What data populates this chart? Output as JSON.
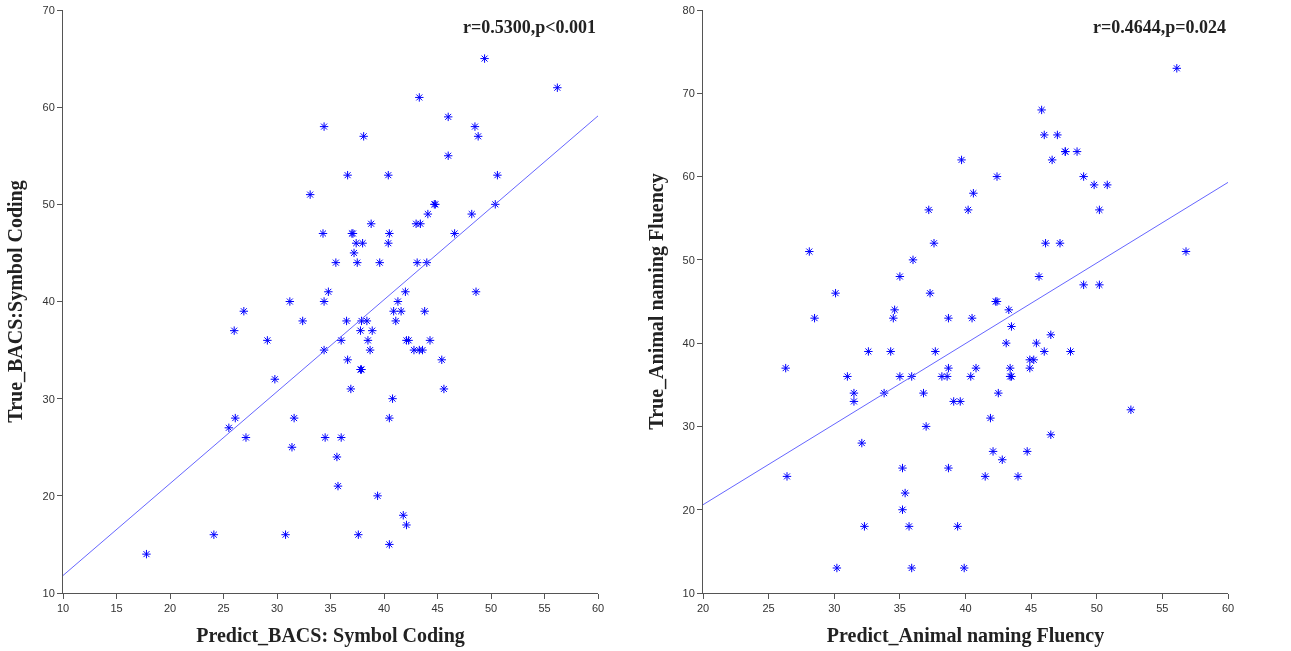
{
  "chart_data": [
    {
      "type": "scatter",
      "xlabel": "Predict_BACS: Symbol Coding",
      "ylabel": "True_BACS:Symbol Coding",
      "annotations": [
        "r=0.5300,p<0.001"
      ],
      "xlim": [
        10,
        60
      ],
      "xticks": [
        10,
        15,
        20,
        25,
        30,
        35,
        40,
        45,
        50,
        55,
        60
      ],
      "ylim": [
        10,
        70
      ],
      "yticks": [
        10,
        20,
        30,
        40,
        50,
        60,
        70
      ],
      "grid": false,
      "marker": "cross",
      "series": [
        {
          "color": "#0000ff",
          "x": [
            17.8,
            24.1,
            25.5,
            26.1,
            26.0,
            26.9,
            27.1,
            29.1,
            29.8,
            30.8,
            31.2,
            31.4,
            31.6,
            32.4,
            33.1,
            34.4,
            34.3,
            34.4,
            34.4,
            34.5,
            34.8,
            35.5,
            35.6,
            35.7,
            36.0,
            36.0,
            36.5,
            36.6,
            36.6,
            36.9,
            37.0,
            37.1,
            37.2,
            37.4,
            37.5,
            37.6,
            37.8,
            37.8,
            37.9,
            37.9,
            38.0,
            38.1,
            38.5,
            38.7,
            38.8,
            38.9,
            38.4,
            39.4,
            39.6,
            40.4,
            40.4,
            40.5,
            40.5,
            40.5,
            40.8,
            40.9,
            41.1,
            41.3,
            41.6,
            41.8,
            42.0,
            42.1,
            42.1,
            42.3,
            43.0,
            42.8,
            43.1,
            43.3,
            43.3,
            43.4,
            43.6,
            43.8,
            44.0,
            44.1,
            44.3,
            44.7,
            44.8,
            45.4,
            45.6,
            46.0,
            46.0,
            46.6,
            48.2,
            48.5,
            48.6,
            48.8,
            49.4,
            50.4,
            50.6,
            56.2
          ],
          "values": [
            14,
            16,
            27,
            28,
            37,
            39,
            26,
            36,
            32,
            16,
            40,
            25,
            28,
            38,
            51,
            58,
            47,
            40,
            35,
            26,
            41,
            44,
            24,
            21,
            26,
            36,
            38,
            34,
            53,
            31,
            47,
            47,
            45,
            46,
            44,
            16,
            37,
            33,
            33,
            38,
            46,
            57,
            36,
            35,
            48,
            37,
            38,
            20,
            44,
            53,
            46,
            47,
            28,
            15,
            30,
            39,
            38,
            40,
            39,
            18,
            41,
            17,
            36,
            36,
            48,
            35,
            44,
            61,
            35,
            48,
            35,
            39,
            44,
            49,
            36,
            50,
            50,
            34,
            31,
            59,
            55,
            47,
            49,
            58,
            41,
            57,
            65,
            50,
            53,
            62
          ]
        },
        {
          "type": "line",
          "color": "#6666ff",
          "line_style": "solid",
          "marker": "none",
          "x": [
            10,
            60
          ],
          "values": [
            11.8,
            59.1
          ]
        }
      ]
    },
    {
      "type": "scatter",
      "xlabel": "Predict_Animal naming Fluency",
      "ylabel": "True_Animal naming Fluency",
      "annotations": [
        "r=0.4644,p=0.024"
      ],
      "xlim": [
        20,
        60
      ],
      "xticks": [
        20,
        25,
        30,
        35,
        40,
        45,
        50,
        55,
        60
      ],
      "ylim": [
        10,
        80
      ],
      "yticks": [
        10,
        20,
        30,
        40,
        50,
        60,
        70,
        80
      ],
      "grid": false,
      "marker": "cross",
      "series": [
        {
          "color": "#0000ff",
          "x": [
            26.3,
            26.4,
            28.1,
            28.5,
            30.1,
            30.2,
            31.0,
            31.5,
            31.5,
            32.1,
            32.3,
            32.6,
            33.8,
            34.3,
            34.5,
            34.6,
            35.0,
            35.0,
            35.2,
            35.2,
            35.4,
            35.7,
            35.9,
            35.9,
            36.0,
            36.8,
            37.0,
            37.2,
            37.3,
            37.6,
            37.7,
            38.2,
            38.6,
            38.7,
            38.7,
            38.7,
            39.1,
            39.4,
            39.6,
            39.7,
            39.9,
            40.2,
            40.4,
            40.6,
            40.5,
            40.8,
            41.5,
            41.9,
            42.1,
            42.3,
            42.4,
            42.4,
            42.5,
            42.8,
            43.1,
            43.3,
            43.4,
            43.4,
            43.5,
            43.5,
            44.0,
            44.7,
            44.9,
            44.9,
            45.2,
            45.4,
            45.6,
            45.8,
            46.0,
            46.0,
            46.1,
            46.5,
            46.5,
            46.6,
            47.0,
            47.2,
            47.6,
            47.6,
            48.0,
            48.5,
            49.0,
            49.0,
            49.8,
            50.2,
            50.2,
            50.8,
            52.6,
            56.1,
            56.8
          ],
          "values": [
            37,
            24,
            51,
            43,
            46,
            13,
            36,
            34,
            33,
            28,
            18,
            39,
            34,
            39,
            43,
            44,
            36,
            48,
            25,
            20,
            22,
            18,
            13,
            36,
            50,
            34,
            30,
            56,
            46,
            52,
            39,
            36,
            36,
            37,
            43,
            25,
            33,
            18,
            33,
            62,
            13,
            56,
            36,
            58,
            43,
            37,
            24,
            31,
            27,
            45,
            45,
            60,
            34,
            26,
            40,
            44,
            37,
            36,
            36,
            42,
            24,
            27,
            38,
            37,
            38,
            40,
            48,
            68,
            65,
            39,
            52,
            29,
            41,
            62,
            65,
            52,
            63,
            63,
            39,
            63,
            47,
            60,
            59,
            56,
            47,
            59,
            32,
            73,
            51
          ]
        },
        {
          "type": "line",
          "color": "#6666ff",
          "line_style": "solid",
          "marker": "none",
          "x": [
            20,
            60
          ],
          "values": [
            20.6,
            59.3
          ]
        }
      ]
    }
  ]
}
